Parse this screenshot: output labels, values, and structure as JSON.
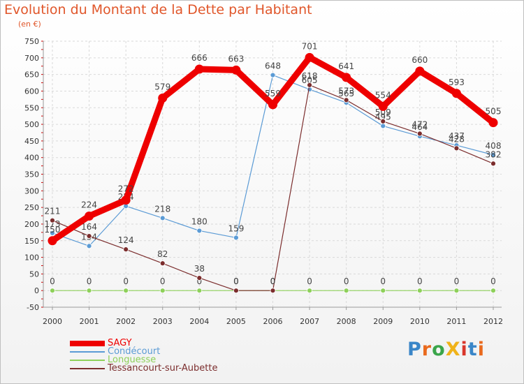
{
  "header": {
    "title": "Evolution du Montant de la Dette par Habitant",
    "subtitle": "(en €)"
  },
  "logo": {
    "text": "ProXiti"
  },
  "chart_data": {
    "type": "line",
    "title": "Evolution du Montant de la Dette par Habitant",
    "ylabel": "(en €)",
    "xlabel": "",
    "x": [
      "2000",
      "2001",
      "2002",
      "2003",
      "2004",
      "2005",
      "2006",
      "2007",
      "2008",
      "2009",
      "2010",
      "2011",
      "2012"
    ],
    "ylim": [
      -50,
      750
    ],
    "yticks": [
      -50,
      0,
      50,
      100,
      150,
      200,
      250,
      300,
      350,
      400,
      450,
      500,
      550,
      600,
      650,
      700,
      750
    ],
    "grid": true,
    "legend": "bottom-left",
    "series": [
      {
        "name": "SAGY",
        "color": "#ee0000",
        "values": [
          150,
          224,
          272,
          579,
          666,
          663,
          559,
          701,
          641,
          554,
          660,
          593,
          505
        ]
      },
      {
        "name": "Condécourt",
        "color": "#5b9bd5",
        "values": [
          173,
          134,
          254,
          218,
          180,
          159,
          648,
          605,
          565,
          495,
          464,
          437,
          408
        ]
      },
      {
        "name": "Longuesse",
        "color": "#8ed05a",
        "values": [
          0,
          0,
          0,
          0,
          0,
          0,
          0,
          0,
          0,
          0,
          0,
          0,
          0
        ]
      },
      {
        "name": "Tessancourt-sur-Aubette",
        "color": "#7b2d2d",
        "values": [
          211,
          164,
          124,
          82,
          38,
          0,
          0,
          618,
          573,
          509,
          472,
          428,
          382
        ]
      }
    ]
  }
}
